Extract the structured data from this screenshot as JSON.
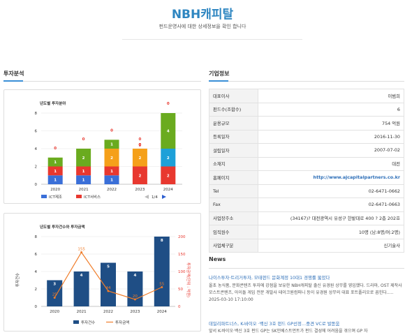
{
  "header": {
    "title": "NBH캐피탈",
    "subtitle": "펀드운영사에 대한 상세정보을 확인 합니다"
  },
  "invest": {
    "section_title": "투자분석",
    "chart1_title": "년도별 투자분야",
    "chart2_title": "년도별 투자건수와 투자금액",
    "legend_ict_mfg": "ICT제조",
    "legend_ict_svc": "ICT서비스",
    "pager": "1/4",
    "legend_count": "투자건수",
    "legend_amount": "투자금액",
    "y_left_label": "투자건수",
    "y_right_label": "투자금액(단위 : 억원)"
  },
  "company": {
    "section_title": "기업정보",
    "rows": [
      {
        "key": "대표이사",
        "value": "이범희"
      },
      {
        "key": "펀드수(조합수)",
        "value": "6"
      },
      {
        "key": "운용규모",
        "value": "754 억원"
      },
      {
        "key": "등록일자",
        "value": "2016-11-30"
      },
      {
        "key": "설립일자",
        "value": "2007-07-02"
      },
      {
        "key": "소재지",
        "value": "대전"
      },
      {
        "key": "홈페이지",
        "value": "http://www.ajcapitalpartners.co.kr"
      },
      {
        "key": "Tel",
        "value": "02-6471-0662"
      },
      {
        "key": "Fax",
        "value": "02-6471-0663"
      },
      {
        "key": "사업장주소",
        "value": "(34167)? 대전광역시 유성구 한밭대로 400 ? 2층 202호"
      },
      {
        "key": "임직원수",
        "value": "10명 (남:8명/여:2명)"
      },
      {
        "key": "사업체구분",
        "value": "신기술사"
      }
    ]
  },
  "news": {
    "section_title": "News",
    "items": [
      {
        "title": "나이스투자·트리거투자, 모태펀드 문화계정 10대1 경쟁률 뚫었다",
        "body": "올초 농식품, 문화콘텐츠 투자에 강점을 보유한 NBH캐피탈 출신 유경원 상무를 영입했다. 드라마, OST 제작사 모스트콘텐츠, 아이돌 게임 전문 개발사 테이크원컴퍼니 등이 유경원 상무의 대표 포트폴리오로 꼽힌다.....",
        "date": "2025-03-10 17:10:00"
      },
      {
        "title": "데일리파트너스, K-바이오 ·백신 3호 펀드 GP선정…중견 VC로 발돋움",
        "body": "앞서 K-바이오·백신 3호 펀드 GP는 SK인베스트먼트가 펀드 결성에 어려움을 겪으며 GP 자"
      }
    ]
  },
  "chart_data": [
    {
      "type": "bar",
      "title": "년도별 투자분야",
      "categories": [
        "2020",
        "2021",
        "2022",
        "2023",
        "2024"
      ],
      "ylim": [
        0,
        8
      ],
      "yticks": [
        0,
        2,
        4,
        6,
        8
      ],
      "stacked": true,
      "series": [
        {
          "name": "ICT제조",
          "values": [
            1,
            1,
            1,
            0,
            0
          ],
          "color": "#3a6fd8"
        },
        {
          "name": "ICT서비스",
          "values": [
            1,
            1,
            1,
            2,
            2
          ],
          "color": "#e8382f"
        },
        {
          "values": [
            0,
            0,
            2,
            2,
            0
          ],
          "color": "#f5a01a"
        },
        {
          "values": [
            0,
            0,
            0,
            0,
            2
          ],
          "color": "#1ea0d8"
        },
        {
          "values": [
            1,
            2,
            1,
            0,
            4
          ],
          "color": "#6aab1f"
        },
        {
          "values": [
            0,
            0,
            0,
            0,
            0
          ],
          "color": "#e8382f"
        }
      ],
      "grid": true,
      "legend": "bottom"
    },
    {
      "type": "bar",
      "title": "년도별 투자건수와 투자금액",
      "categories": [
        "2020",
        "2021",
        "2022",
        "2023",
        "2024"
      ],
      "ylim": [
        0,
        8
      ],
      "yticks": [
        0,
        2,
        4,
        6,
        8
      ],
      "ylabel": "투자건수",
      "y2lim": [
        0,
        200
      ],
      "y2ticks": [
        0,
        50,
        100,
        150,
        200
      ],
      "y2label": "투자금액(단위 : 억원)",
      "series": [
        {
          "name": "투자건수",
          "kind": "bar",
          "values": [
            3,
            4,
            5,
            4,
            8
          ],
          "color": "#1f4e85"
        },
        {
          "name": "투자금액",
          "kind": "line",
          "axis": "right",
          "values": [
            25,
            155,
            44,
            20,
            55
          ],
          "color": "#f07d2a"
        }
      ],
      "grid": true,
      "legend": "bottom"
    }
  ]
}
